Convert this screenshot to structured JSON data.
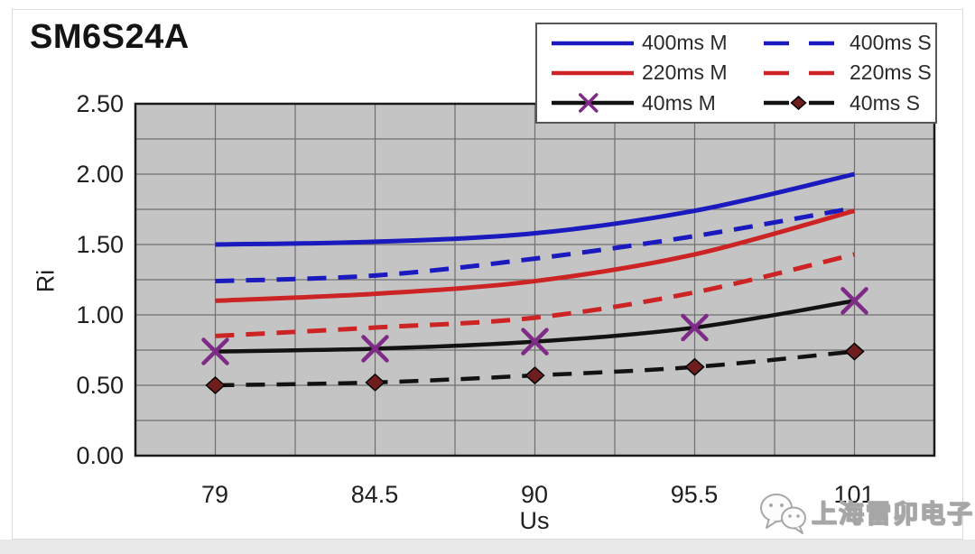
{
  "page": {
    "title": "SM6S24A",
    "watermark_text": "上海雷卯电子"
  },
  "chart_data": {
    "type": "line",
    "title": "SM6S24A",
    "xlabel": "Us",
    "ylabel": "Ri",
    "x": [
      79,
      84.5,
      90,
      95.5,
      101
    ],
    "x_tick_labels": [
      "79",
      "84.5",
      "90",
      "95.5",
      "101"
    ],
    "y_tick_labels": [
      "2.50",
      "2.00",
      "1.50",
      "1.00",
      "0.50",
      "0.00"
    ],
    "ylim": [
      0,
      2.5
    ],
    "y_grid_step": 0.25,
    "grid": true,
    "legend_position": "top-right",
    "plot_bg": "#c4c4c4",
    "grid_color": "#6f6f6f",
    "border_color": "#1a1a1a",
    "series": [
      {
        "name": "400ms M",
        "color": "#1a1abf",
        "style": "solid",
        "marker": "none",
        "values": [
          1.5,
          1.52,
          1.58,
          1.74,
          2.0
        ]
      },
      {
        "name": "400ms S",
        "color": "#1a1abf",
        "style": "dashed",
        "marker": "none",
        "values": [
          1.24,
          1.28,
          1.4,
          1.56,
          1.76
        ]
      },
      {
        "name": "220ms M",
        "color": "#cc2424",
        "style": "solid",
        "marker": "none",
        "values": [
          1.1,
          1.15,
          1.24,
          1.43,
          1.74
        ]
      },
      {
        "name": "220ms S",
        "color": "#cc2424",
        "style": "dashed",
        "marker": "none",
        "values": [
          0.85,
          0.91,
          0.98,
          1.16,
          1.43
        ]
      },
      {
        "name": "40ms M",
        "color": "#121212",
        "style": "solid",
        "marker": "x",
        "marker_color": "#7d2b86",
        "values": [
          0.74,
          0.76,
          0.81,
          0.91,
          1.1
        ]
      },
      {
        "name": "40ms S",
        "color": "#121212",
        "style": "dashed",
        "marker": "diamond",
        "marker_color": "#701d1d",
        "values": [
          0.5,
          0.52,
          0.57,
          0.63,
          0.74
        ]
      }
    ]
  }
}
